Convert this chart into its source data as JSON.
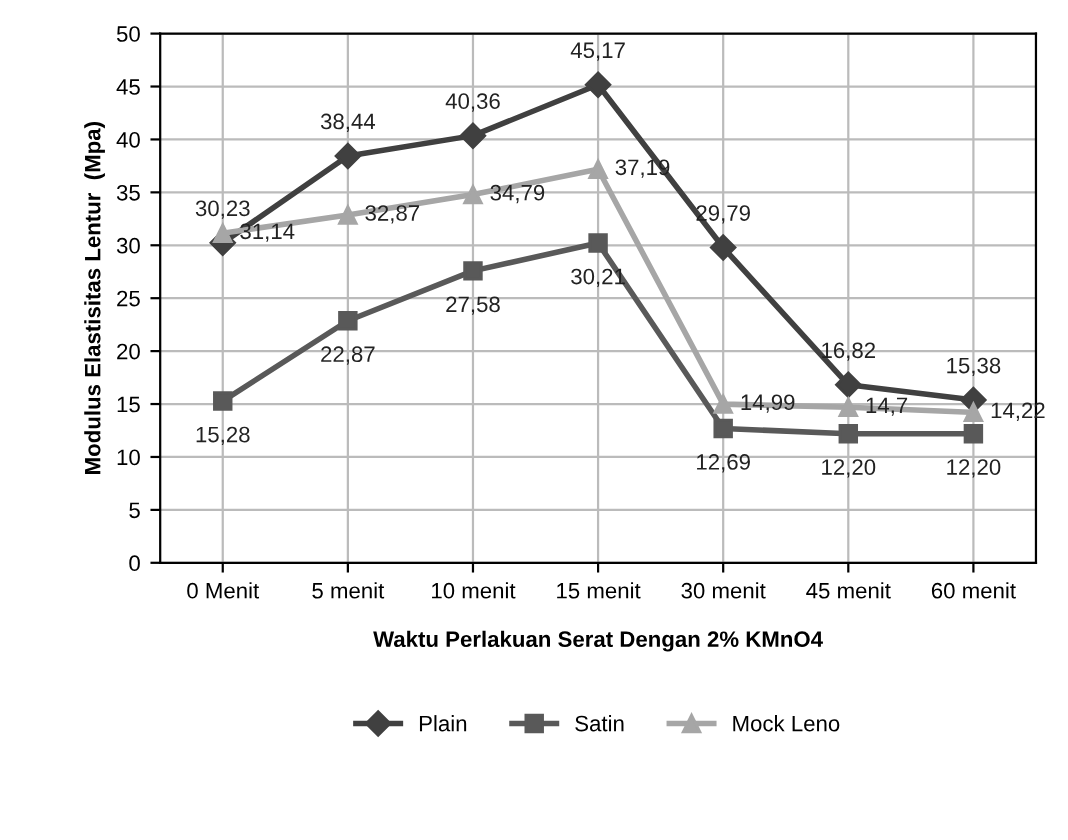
{
  "chart_data": {
    "type": "line",
    "xlabel": "Waktu Perlakuan Serat Dengan 2% KMnO4",
    "ylabel": "Modulus Elastisitas Lentur  (Mpa)",
    "categories": [
      "0 Menit",
      "5 menit",
      "10 menit",
      "15 menit",
      "30 menit",
      "45 menit",
      "60 menit"
    ],
    "series": [
      {
        "name": "Plain",
        "color": "#404040",
        "marker": "diamond",
        "values": [
          30.23,
          38.44,
          40.36,
          45.17,
          29.79,
          16.82,
          15.38
        ],
        "value_labels": [
          "30,23",
          "38,44",
          "40,36",
          "45,17",
          "29,79",
          "16,82",
          "15,38"
        ]
      },
      {
        "name": "Satin",
        "color": "#595959",
        "marker": "square",
        "values": [
          15.28,
          22.87,
          27.58,
          30.21,
          12.69,
          12.2,
          12.2
        ],
        "value_labels": [
          "15,28",
          "22,87",
          "27,58",
          "30,21",
          "12,69",
          "12,20",
          "12,20"
        ]
      },
      {
        "name": "Mock Leno",
        "color": "#a6a6a6",
        "marker": "triangle",
        "values": [
          31.14,
          32.87,
          34.79,
          37.19,
          14.99,
          14.7,
          14.22
        ],
        "value_labels": [
          "31,14",
          "32,87",
          "34,79",
          "37,19",
          "14,99",
          "14,7",
          "14,22"
        ]
      }
    ],
    "ylim": [
      0,
      50
    ],
    "yticks": [
      0,
      5,
      10,
      15,
      20,
      25,
      30,
      35,
      40,
      45,
      50
    ],
    "grid": true,
    "legend": "bottom",
    "line_style": "solid"
  }
}
